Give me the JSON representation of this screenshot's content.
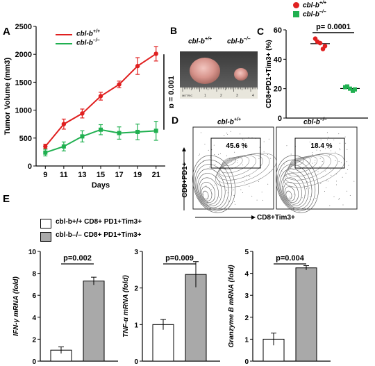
{
  "panels": {
    "A": "A",
    "B": "B",
    "C": "C",
    "D": "D",
    "E": "E"
  },
  "genotype": {
    "wt_base": "cbl-b",
    "wt_sup": "+/+",
    "ko_base": "cbl-b",
    "ko_sup": "–/–"
  },
  "colors": {
    "wt": "#e02020",
    "ko": "#20b050",
    "bar_fill": "#a9a9a9"
  },
  "panel_b": {
    "wt_label": "cbl-b+/+",
    "ko_label": "cbl-b–/–",
    "ruler_text": "METRIC",
    "ruler_numbers": [
      "1",
      "2",
      "3",
      "4"
    ]
  },
  "panel_d": {
    "wt_label": "cbl-b+/+",
    "ko_label": "cbl-b–/–",
    "y_label": "CD8+PD1+",
    "x_label": "CD8+Tim3+",
    "wt_percent": "45.6 %",
    "ko_percent": "18.4 %"
  },
  "legend_e": {
    "wt_text": "cbl-b+/+ CD8+ PD1+Tim3+",
    "ko_text": "cbl-b–/– CD8+ PD1+Tim3+"
  },
  "chart_data": [
    {
      "id": "tumor-volume",
      "type": "line",
      "xlabel": "Days",
      "ylabel": "Tumor Volume (mm3)",
      "x": [
        9,
        11,
        13,
        15,
        17,
        19,
        21
      ],
      "ylim": [
        0,
        2500
      ],
      "yticks": [
        0,
        500,
        1000,
        1500,
        2000,
        2500
      ],
      "series": [
        {
          "name": "cbl-b+/+",
          "values": [
            350,
            750,
            940,
            1250,
            1460,
            1790,
            2010
          ],
          "errors": [
            40,
            90,
            80,
            70,
            60,
            150,
            130
          ]
        },
        {
          "name": "cbl-b–/–",
          "values": [
            240,
            350,
            530,
            650,
            590,
            610,
            630
          ],
          "errors": [
            60,
            80,
            100,
            90,
            110,
            140,
            170
          ]
        }
      ],
      "annotation": "p = 0.001"
    },
    {
      "id": "cd8-pd1-tim3",
      "type": "scatter",
      "ylabel": "CD8+PD1+Tim3+ (%)",
      "ylim": [
        0,
        60
      ],
      "yticks": [
        0,
        20,
        40,
        60
      ],
      "series": [
        {
          "name": "cbl-b+/+",
          "values": [
            54,
            51,
            49,
            52,
            47
          ]
        },
        {
          "name": "cbl-b–/–",
          "values": [
            21,
            20,
            19.5,
            21.5,
            18.5
          ]
        }
      ],
      "annotation": "p= 0.0001"
    },
    {
      "id": "ifn-gamma",
      "type": "bar",
      "ylabel": "IFN-γ mRNA (fold)",
      "ylim": [
        0,
        10
      ],
      "yticks": [
        0,
        2,
        4,
        6,
        8,
        10
      ],
      "values": [
        1.0,
        7.3
      ],
      "errors": [
        0.3,
        0.35
      ],
      "annotation": "p=0.002"
    },
    {
      "id": "tnf-alpha",
      "type": "bar",
      "ylabel": "TNF-α mRNA (fold)",
      "ylim": [
        0,
        3
      ],
      "yticks": [
        0,
        1,
        2,
        3
      ],
      "values": [
        1.0,
        2.37
      ],
      "errors": [
        0.14,
        0.35
      ],
      "annotation": "p=0.009"
    },
    {
      "id": "granzyme-b",
      "type": "bar",
      "ylabel": "Granzyme B mRNA (fold)",
      "ylim": [
        0,
        5
      ],
      "yticks": [
        0,
        1,
        2,
        3,
        4,
        5
      ],
      "values": [
        1.0,
        4.25
      ],
      "errors": [
        0.28,
        0.1
      ],
      "annotation": "p=0.004"
    }
  ]
}
